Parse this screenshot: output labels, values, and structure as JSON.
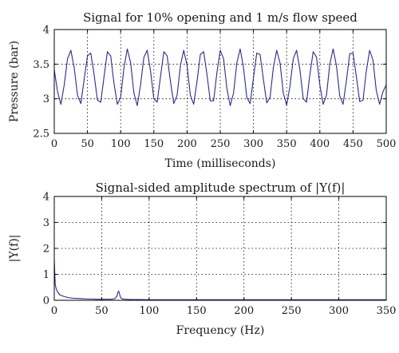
{
  "colors": {
    "series": "#2b2b8c",
    "axis": "#000000",
    "background": "#ffffff"
  },
  "chart_data": [
    {
      "type": "line",
      "title": "Signal for 10% opening and 1 m/s flow speed",
      "xlabel": "Time (milliseconds)",
      "ylabel": "Pressure (bar)",
      "xlim": [
        0,
        500
      ],
      "ylim": [
        2.5,
        4
      ],
      "xticks": [
        0,
        50,
        100,
        150,
        200,
        250,
        300,
        350,
        400,
        450,
        500
      ],
      "yticks": [
        2.5,
        3,
        3.5,
        4
      ],
      "xtick_labels": [
        "0",
        "50",
        "100",
        "150",
        "200",
        "250",
        "300",
        "350",
        "400",
        "450",
        "500"
      ],
      "ytick_labels": [
        "2.5",
        "3",
        "3.5",
        "4"
      ],
      "grid": true,
      "series": [
        {
          "x": [
            0,
            5,
            10,
            15,
            20,
            25,
            30,
            35,
            40,
            45,
            50,
            55,
            60,
            65,
            70,
            75,
            80,
            85,
            90,
            95,
            100,
            105,
            110,
            115,
            120,
            125,
            130,
            135,
            140,
            145,
            150,
            155,
            160,
            165,
            170,
            175,
            180,
            185,
            190,
            195,
            200,
            205,
            210,
            215,
            220,
            225,
            230,
            235,
            240,
            245,
            250,
            255,
            260,
            265,
            270,
            275,
            280,
            285,
            290,
            295,
            300,
            305,
            310,
            315,
            320,
            325,
            330,
            335,
            340,
            345,
            350,
            355,
            360,
            365,
            370,
            375,
            380,
            385,
            390,
            395,
            400,
            405,
            410,
            415,
            420,
            425,
            430,
            435,
            440,
            445,
            450,
            455,
            460,
            465,
            470,
            475,
            480,
            485,
            490,
            495,
            500
          ],
          "y": [
            3.42,
            3.1,
            2.92,
            3.2,
            3.58,
            3.7,
            3.45,
            3.05,
            2.93,
            3.28,
            3.62,
            3.66,
            3.35,
            2.98,
            2.95,
            3.32,
            3.68,
            3.62,
            3.22,
            2.92,
            3.02,
            3.45,
            3.72,
            3.52,
            3.08,
            2.9,
            3.2,
            3.6,
            3.7,
            3.4,
            3.0,
            2.95,
            3.32,
            3.68,
            3.62,
            3.25,
            2.93,
            3.05,
            3.48,
            3.7,
            3.48,
            3.05,
            2.92,
            3.25,
            3.64,
            3.68,
            3.35,
            2.97,
            2.97,
            3.38,
            3.7,
            3.58,
            3.15,
            2.9,
            3.08,
            3.52,
            3.72,
            3.45,
            3.02,
            2.93,
            3.3,
            3.66,
            3.64,
            3.28,
            2.94,
            3.02,
            3.45,
            3.7,
            3.52,
            3.08,
            2.91,
            3.18,
            3.58,
            3.7,
            3.42,
            3.0,
            2.95,
            3.35,
            3.68,
            3.6,
            3.2,
            2.92,
            3.05,
            3.5,
            3.72,
            3.48,
            3.04,
            2.92,
            3.26,
            3.65,
            3.66,
            3.32,
            2.96,
            2.98,
            3.4,
            3.7,
            3.56,
            3.12,
            2.92,
            3.1,
            3.2
          ]
        }
      ]
    },
    {
      "type": "line",
      "title": "Signal-sided amplitude spectrum of |Y(f)|",
      "xlabel": "Frequency (Hz)",
      "ylabel": "|Y(f)|",
      "xlim": [
        0,
        350
      ],
      "ylim": [
        0,
        4
      ],
      "xticks": [
        0,
        50,
        100,
        150,
        200,
        250,
        300,
        350
      ],
      "yticks": [
        0,
        1,
        2,
        3,
        4
      ],
      "xtick_labels": [
        "0",
        "50",
        "100",
        "150",
        "200",
        "250",
        "300",
        "350"
      ],
      "ytick_labels": [
        "0",
        "1",
        "2",
        "3",
        "4"
      ],
      "grid": true,
      "series": [
        {
          "x": [
            0,
            1,
            2,
            3,
            4,
            5,
            6,
            8,
            10,
            12,
            15,
            20,
            25,
            30,
            35,
            40,
            45,
            50,
            55,
            60,
            62,
            64,
            66,
            67,
            68,
            69,
            70,
            72,
            75,
            80,
            90,
            100,
            120,
            150,
            200,
            250,
            300,
            350
          ],
          "y": [
            1.55,
            0.6,
            0.45,
            0.35,
            0.3,
            0.25,
            0.2,
            0.18,
            0.15,
            0.13,
            0.1,
            0.08,
            0.07,
            0.06,
            0.05,
            0.05,
            0.04,
            0.04,
            0.04,
            0.04,
            0.05,
            0.07,
            0.15,
            0.3,
            0.35,
            0.22,
            0.1,
            0.05,
            0.04,
            0.03,
            0.03,
            0.02,
            0.02,
            0.02,
            0.02,
            0.02,
            0.02,
            0.02
          ]
        }
      ]
    }
  ]
}
